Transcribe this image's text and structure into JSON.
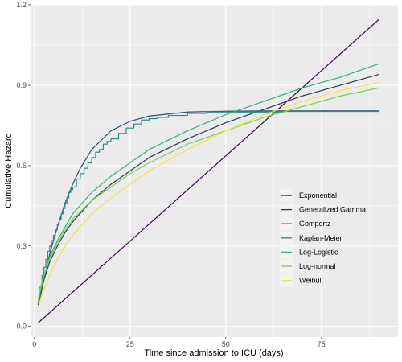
{
  "chart_data": {
    "type": "line",
    "title": "",
    "xlabel": "Time since admission to ICU (days)",
    "ylabel": "Cumulative Hazard",
    "xlim": [
      -1,
      95
    ],
    "ylim": [
      -0.04,
      1.2
    ],
    "x_ticks": [
      0,
      25,
      50,
      75
    ],
    "y_ticks": [
      0.0,
      0.3,
      0.6,
      0.9,
      1.2
    ],
    "y_tick_labels": [
      "0.0",
      "0.3",
      "0.6",
      "0.9",
      "1.2"
    ],
    "grid": true,
    "background": "#ebebeb",
    "legend_position": "bottom-right",
    "legend": [
      "Exponential",
      "Generalized Gamma",
      "Gompertz",
      "Kaplan-Meier",
      "Log-Logistic",
      "Log-normal",
      "Weibull"
    ],
    "series": [
      {
        "name": "Exponential",
        "color": "#440154",
        "x": [
          1,
          90
        ],
        "y": [
          0.013,
          1.145
        ]
      },
      {
        "name": "Generalized Gamma",
        "color": "#2d3a4f",
        "x": [
          1,
          2,
          4,
          6,
          8,
          10,
          15,
          20,
          25,
          30,
          40,
          50,
          60,
          70,
          80,
          90
        ],
        "y": [
          0.08,
          0.15,
          0.24,
          0.3,
          0.35,
          0.39,
          0.47,
          0.53,
          0.58,
          0.63,
          0.7,
          0.76,
          0.81,
          0.86,
          0.9,
          0.94
        ]
      },
      {
        "name": "Gompertz",
        "color": "#2c5273",
        "x": [
          1,
          2,
          4,
          6,
          8,
          10,
          12,
          15,
          20,
          25,
          30,
          40,
          50,
          60,
          70,
          80,
          90
        ],
        "y": [
          0.07,
          0.14,
          0.27,
          0.37,
          0.46,
          0.53,
          0.59,
          0.66,
          0.73,
          0.765,
          0.785,
          0.8,
          0.803,
          0.804,
          0.804,
          0.804,
          0.804
        ]
      },
      {
        "name": "Kaplan-Meier",
        "color": "#2a8a8a",
        "step": true,
        "x": [
          1,
          1.5,
          2,
          2.5,
          3,
          3.5,
          4,
          4.5,
          5,
          5.5,
          6,
          6.5,
          7,
          7.5,
          8,
          8.5,
          9,
          9.5,
          10,
          11,
          12,
          13,
          14,
          15,
          16,
          17,
          18,
          19,
          20,
          22,
          24,
          26,
          28,
          30,
          32,
          35,
          40,
          45,
          50,
          55,
          60,
          65,
          70,
          80,
          90
        ],
        "y": [
          0.1,
          0.15,
          0.19,
          0.22,
          0.25,
          0.28,
          0.3,
          0.32,
          0.34,
          0.36,
          0.38,
          0.4,
          0.42,
          0.44,
          0.46,
          0.48,
          0.5,
          0.51,
          0.52,
          0.55,
          0.57,
          0.59,
          0.61,
          0.63,
          0.65,
          0.66,
          0.68,
          0.69,
          0.7,
          0.72,
          0.74,
          0.755,
          0.77,
          0.775,
          0.78,
          0.787,
          0.795,
          0.8,
          0.8,
          0.8,
          0.8,
          0.802,
          0.802,
          0.802,
          0.802
        ]
      },
      {
        "name": "Log-Logistic",
        "color": "#3ab079",
        "x": [
          1,
          2,
          4,
          6,
          8,
          10,
          15,
          20,
          25,
          30,
          40,
          50,
          60,
          70,
          80,
          90
        ],
        "y": [
          0.09,
          0.16,
          0.26,
          0.32,
          0.37,
          0.42,
          0.5,
          0.56,
          0.61,
          0.66,
          0.73,
          0.79,
          0.84,
          0.89,
          0.93,
          0.98
        ]
      },
      {
        "name": "Log-normal",
        "color": "#7ad151",
        "x": [
          1,
          2,
          4,
          6,
          8,
          10,
          15,
          20,
          25,
          30,
          40,
          50,
          60,
          70,
          80,
          90
        ],
        "y": [
          0.1,
          0.17,
          0.25,
          0.31,
          0.36,
          0.4,
          0.47,
          0.52,
          0.57,
          0.61,
          0.68,
          0.73,
          0.78,
          0.82,
          0.86,
          0.89
        ]
      },
      {
        "name": "Weibull",
        "color": "#f4e04d",
        "x": [
          1,
          2,
          4,
          6,
          8,
          10,
          15,
          20,
          25,
          30,
          40,
          50,
          60,
          70,
          80,
          90
        ],
        "y": [
          0.07,
          0.12,
          0.19,
          0.25,
          0.3,
          0.34,
          0.42,
          0.48,
          0.53,
          0.58,
          0.66,
          0.73,
          0.79,
          0.84,
          0.88,
          0.91
        ]
      }
    ]
  }
}
